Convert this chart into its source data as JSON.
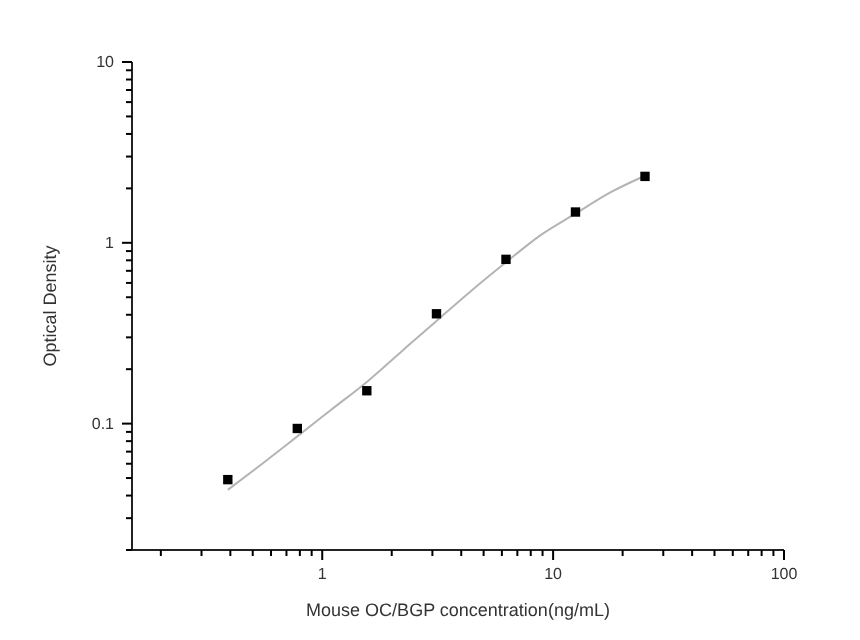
{
  "chart_data": {
    "type": "scatter",
    "xlabel": "Mouse OC/BGP concentration(ng/mL)",
    "ylabel": "Optical Density",
    "log": "xy",
    "grid": false,
    "marker": "square",
    "xlim": [
      0.15,
      100
    ],
    "ylim": [
      0.02,
      10
    ],
    "xticks": [
      {
        "value": 0.2,
        "label": null
      },
      {
        "value": 0.3,
        "label": null
      },
      {
        "value": 0.4,
        "label": null
      },
      {
        "value": 0.5,
        "label": null
      },
      {
        "value": 0.6,
        "label": null
      },
      {
        "value": 0.7,
        "label": null
      },
      {
        "value": 0.8,
        "label": null
      },
      {
        "value": 0.9,
        "label": null
      },
      1,
      {
        "value": 2,
        "label": null
      },
      {
        "value": 3,
        "label": null
      },
      {
        "value": 4,
        "label": null
      },
      {
        "value": 5,
        "label": null
      },
      {
        "value": 6,
        "label": null
      },
      {
        "value": 7,
        "label": null
      },
      {
        "value": 8,
        "label": null
      },
      {
        "value": 9,
        "label": null
      },
      10,
      {
        "value": 20,
        "label": null
      },
      {
        "value": 30,
        "label": null
      },
      {
        "value": 40,
        "label": null
      },
      {
        "value": 50,
        "label": null
      },
      {
        "value": 60,
        "label": null
      },
      {
        "value": 70,
        "label": null
      },
      {
        "value": 80,
        "label": null
      },
      {
        "value": 90,
        "label": null
      },
      100
    ],
    "yticks": [
      {
        "value": 0.02,
        "label": null
      },
      {
        "value": 0.03,
        "label": null
      },
      {
        "value": 0.04,
        "label": null
      },
      {
        "value": 0.05,
        "label": null
      },
      {
        "value": 0.06,
        "label": null
      },
      {
        "value": 0.07,
        "label": null
      },
      {
        "value": 0.08,
        "label": null
      },
      {
        "value": 0.09,
        "label": null
      },
      0.1,
      {
        "value": 0.2,
        "label": null
      },
      {
        "value": 0.3,
        "label": null
      },
      {
        "value": 0.4,
        "label": null
      },
      {
        "value": 0.5,
        "label": null
      },
      {
        "value": 0.6,
        "label": null
      },
      {
        "value": 0.7,
        "label": null
      },
      {
        "value": 0.8,
        "label": null
      },
      {
        "value": 0.9,
        "label": null
      },
      1,
      {
        "value": 2,
        "label": null
      },
      {
        "value": 3,
        "label": null
      },
      {
        "value": 4,
        "label": null
      },
      {
        "value": 5,
        "label": null
      },
      {
        "value": 6,
        "label": null
      },
      {
        "value": 7,
        "label": null
      },
      {
        "value": 8,
        "label": null
      },
      {
        "value": 9,
        "label": null
      },
      10
    ],
    "series": [
      {
        "type": "line",
        "color": "#b4b4b4",
        "marker": "none",
        "line_style": "solid",
        "x": [
          0.39,
          0.55,
          0.78,
          1.1,
          1.56,
          2.2,
          3.125,
          4.4,
          6.25,
          8.8,
          12.5,
          17.7,
          25
        ],
        "values": [
          0.043,
          0.06,
          0.085,
          0.12,
          0.17,
          0.25,
          0.37,
          0.54,
          0.78,
          1.1,
          1.45,
          1.9,
          2.35
        ]
      },
      {
        "color": "#000000",
        "x": [
          0.39,
          0.78,
          1.56,
          3.125,
          6.25,
          12.5,
          25
        ],
        "values": [
          0.049,
          0.094,
          0.152,
          0.405,
          0.81,
          1.48,
          2.33
        ]
      }
    ]
  }
}
